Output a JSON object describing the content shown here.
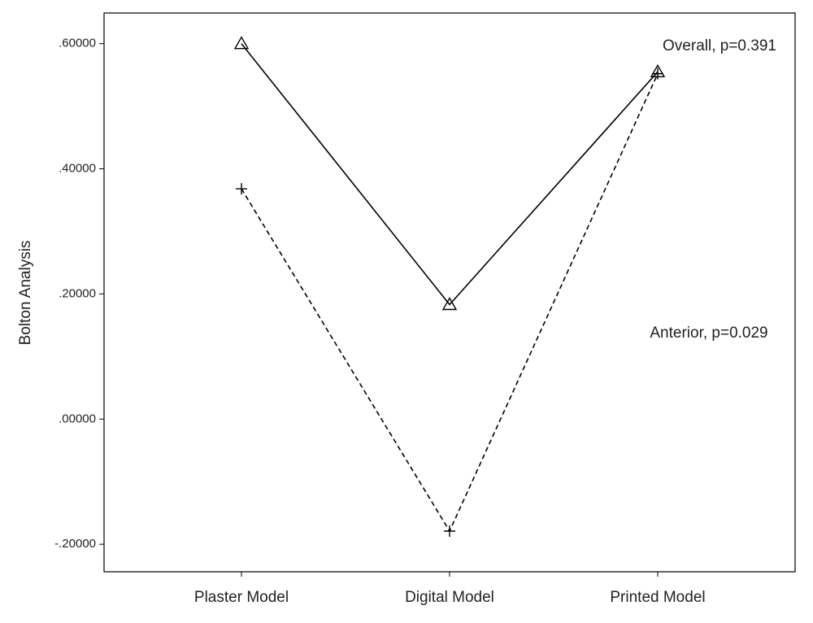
{
  "chart_data": {
    "type": "line",
    "y_label": "Bolton Analysis",
    "categories": [
      "Plaster Model",
      "Digital Model",
      "Printed Model"
    ],
    "series": [
      {
        "name": "Overall, p=0.391",
        "color": "#000000",
        "marker": "triangle",
        "line_style": "solid",
        "values": [
          0.6,
          0.183,
          0.555
        ]
      },
      {
        "name": "Anterior, p=0.029",
        "color": "#000000",
        "marker": "plus",
        "line_style": "dashed",
        "values": [
          0.368,
          -0.179,
          0.552
        ]
      }
    ],
    "ylim": [
      -0.244,
      0.649
    ],
    "yticks": [
      {
        "value": -0.2,
        "label": "-.20000"
      },
      {
        "value": 0,
        "label": ".00000"
      },
      {
        "value": 0.2,
        "label": ".20000"
      },
      {
        "value": 0.4,
        "label": ".40000"
      },
      {
        "value": 0.6,
        "label": ".60000"
      }
    ],
    "grid": false
  }
}
